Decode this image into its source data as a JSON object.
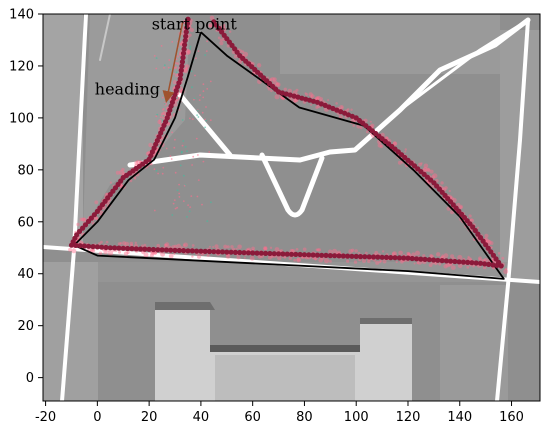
{
  "chart_data": {
    "type": "scatter",
    "title": "",
    "xlabel": "",
    "ylabel": "",
    "xlim": [
      -21,
      171
    ],
    "ylim": [
      -9,
      140
    ],
    "xticks": [
      -20,
      0,
      20,
      40,
      60,
      80,
      100,
      120,
      140,
      160
    ],
    "yticks": [
      0,
      20,
      40,
      60,
      80,
      100,
      120,
      140
    ],
    "grid": false,
    "background": "aerial map of roads and buildings",
    "annotations": [
      {
        "text": "start point",
        "x": 21,
        "y": 134
      },
      {
        "text": "heading",
        "x": -1,
        "y": 109
      }
    ],
    "heading_arrow": {
      "from": [
        33,
        137
      ],
      "to": [
        27,
        108
      ]
    },
    "series": [
      {
        "kind": "reference-path",
        "color": "#000000",
        "x": [
          40,
          35,
          30,
          22,
          12,
          0,
          -9,
          0,
          60,
          120,
          157,
          140,
          122,
          103,
          78,
          50,
          40
        ],
        "y": [
          133,
          116,
          100,
          84,
          76,
          60,
          51,
          47,
          44,
          41,
          38,
          62,
          80,
          97,
          104,
          124,
          133
        ]
      },
      {
        "kind": "estimated-trajectory",
        "color": "#8b1a3a",
        "x": [
          35,
          32,
          27,
          20,
          10,
          0,
          -8,
          -10,
          5,
          30,
          60,
          90,
          120,
          148,
          156,
          145,
          130,
          115,
          100,
          85,
          70,
          55,
          45
        ],
        "y": [
          138,
          115,
          100,
          84,
          77,
          64,
          55,
          51,
          50,
          49,
          48,
          47,
          46,
          44,
          43,
          58,
          75,
          88,
          100,
          106,
          110,
          124,
          137
        ]
      }
    ],
    "colors": {
      "trajectory_points": "#8b1a3a",
      "particle_halo": "#ff6e8e",
      "reference_path": "#000000",
      "roads": "#ffffff",
      "ground": "#8f8f8f"
    }
  }
}
